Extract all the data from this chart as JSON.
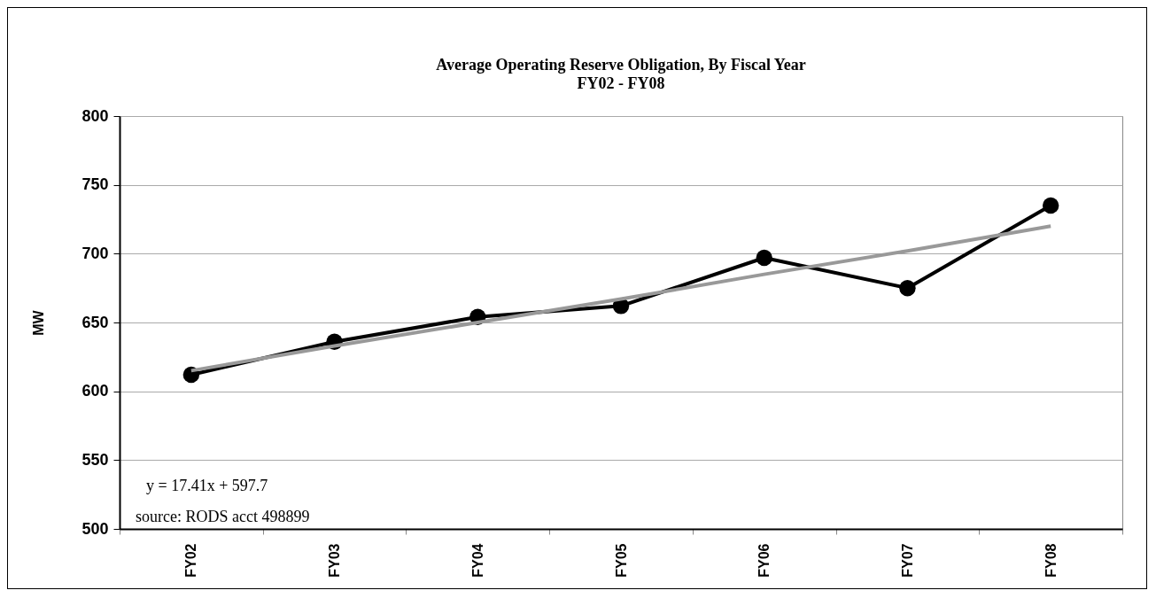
{
  "chart_data": {
    "type": "line",
    "title": "Average Operating Reserve Obligation, By Fiscal Year",
    "subtitle": "FY02 - FY08",
    "ylabel": "MW",
    "categories": [
      "FY02",
      "FY03",
      "FY04",
      "FY05",
      "FY06",
      "FY07",
      "FY08"
    ],
    "series": [
      {
        "color": "#000000",
        "marker": "circle",
        "values": [
          612,
          636,
          654,
          662,
          697,
          675,
          735
        ]
      },
      {
        "type": "line",
        "color": "#999999",
        "marker": "none",
        "values": [
          615,
          633,
          650,
          667,
          685,
          702,
          720
        ]
      }
    ],
    "ylim": [
      500,
      800
    ],
    "yticks": [
      500,
      550,
      600,
      650,
      700,
      750,
      800
    ],
    "grid": "y",
    "annotations": [
      "y = 17.41x + 597.7",
      "source: RODS acct 498899"
    ]
  }
}
